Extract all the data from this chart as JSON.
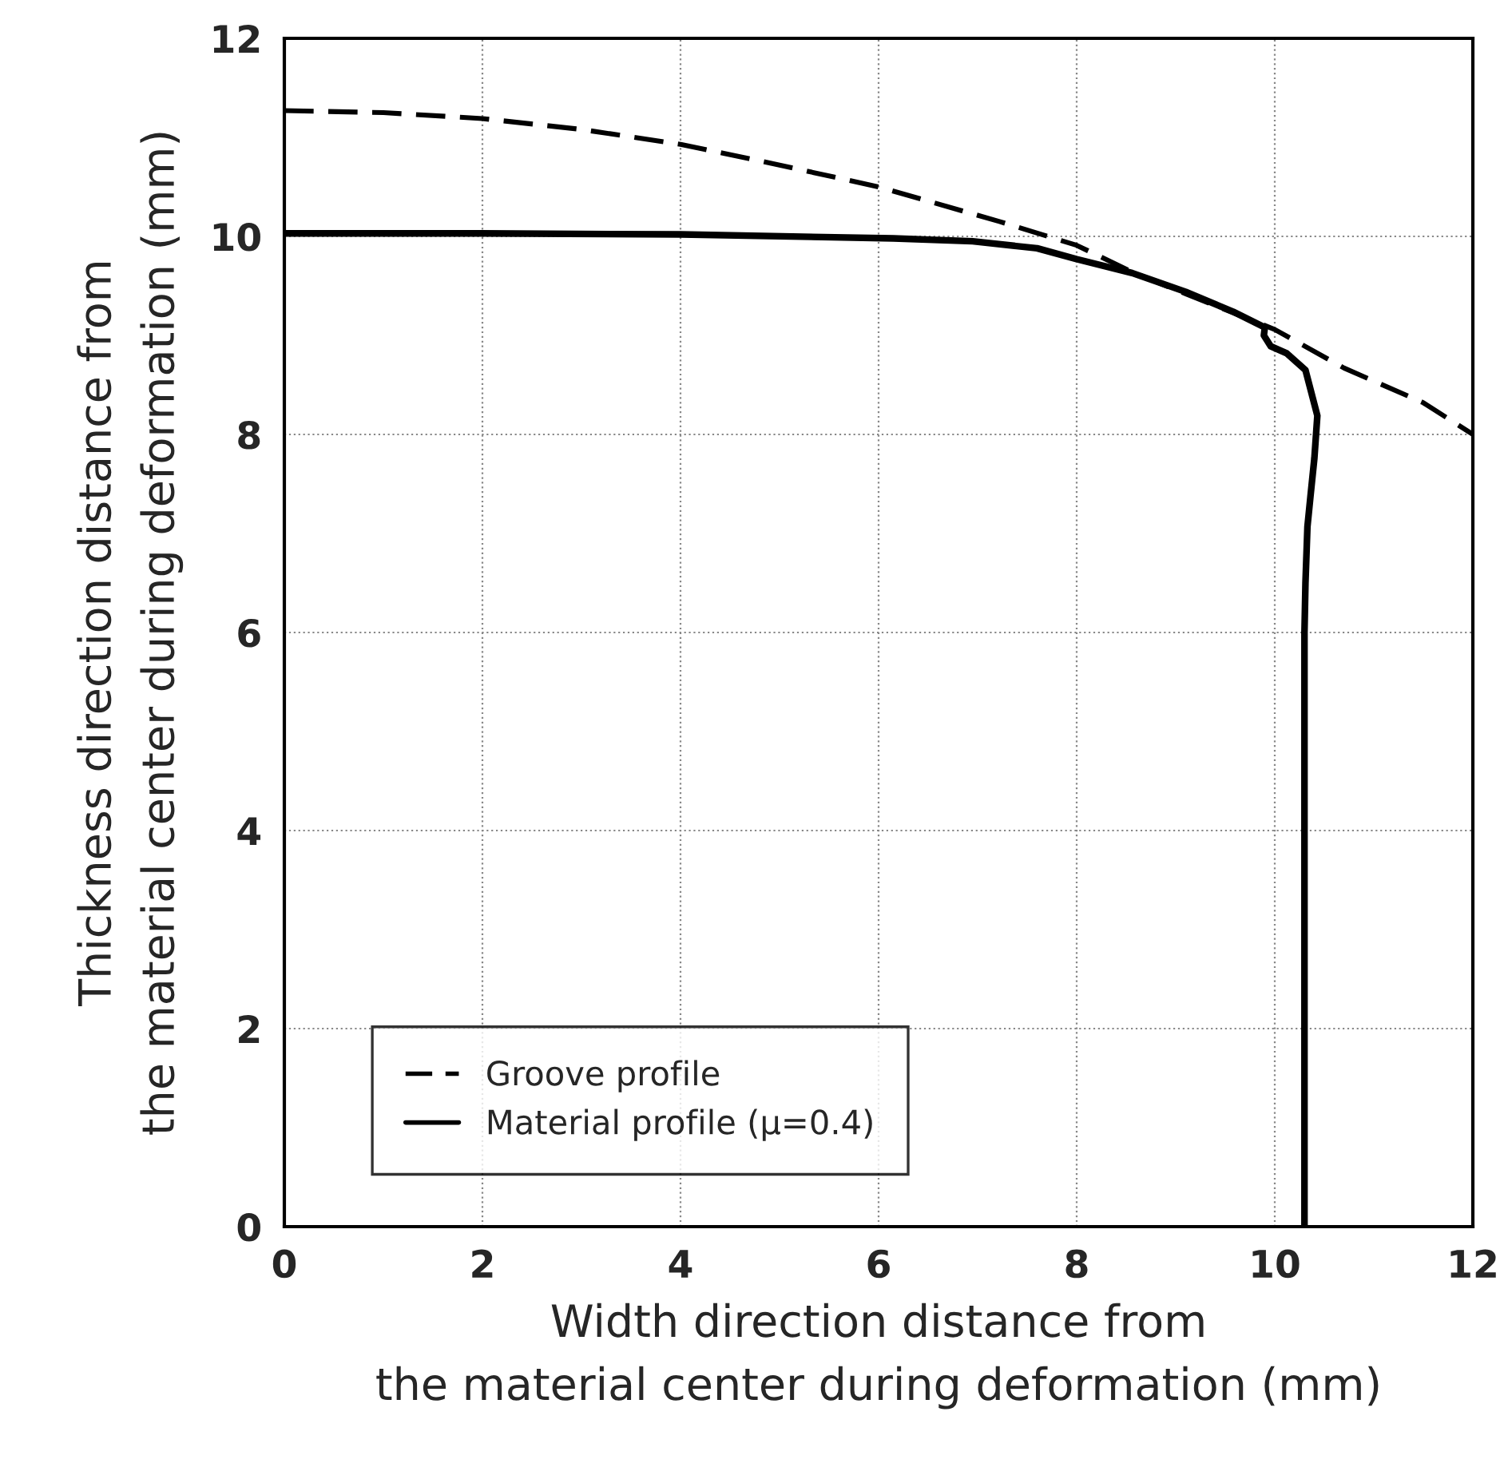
{
  "chart_data": {
    "type": "line",
    "xlabel": "Width direction distance from\nthe material center during deformation (mm)",
    "ylabel": "Thickness direction distance from\nthe material center during deformation (mm)",
    "series": [
      {
        "name": "Groove profile",
        "color": "#000000",
        "line_style": "dashed",
        "x": [
          0,
          1,
          2,
          3,
          4,
          5,
          6,
          7.22,
          8,
          8.56,
          9.1,
          10,
          10.7,
          11.5,
          12
        ],
        "values": [
          11.27,
          11.25,
          11.19,
          11.08,
          10.93,
          10.72,
          10.5,
          10.15,
          9.91,
          9.64,
          9.42,
          9.06,
          8.67,
          8.32,
          8.0
        ]
      },
      {
        "name": "Material profile (μ=0.4)",
        "color": "#000000",
        "line_style": "solid",
        "x": [
          0,
          2,
          4,
          6.15,
          6.95,
          7.6,
          8,
          8.56,
          9.1,
          9.58,
          9.9,
          9.89,
          9.96,
          10.12,
          10.31,
          10.43,
          10.4,
          10.36,
          10.33,
          10.31,
          10.3,
          10.3,
          10.3
        ],
        "values": [
          10.03,
          10.03,
          10.02,
          9.98,
          9.95,
          9.88,
          9.77,
          9.63,
          9.44,
          9.24,
          9.08,
          9.0,
          8.89,
          8.82,
          8.65,
          8.19,
          7.76,
          7.37,
          7.07,
          6.5,
          6,
          3,
          0
        ]
      }
    ],
    "xlim": [
      0,
      12
    ],
    "ylim": [
      0,
      12
    ],
    "xticks": [
      0,
      2,
      4,
      6,
      8,
      10,
      12
    ],
    "yticks": [
      0,
      2,
      4,
      6,
      8,
      10,
      12
    ],
    "grid": true,
    "legend": "bottom left",
    "marker": "none"
  }
}
